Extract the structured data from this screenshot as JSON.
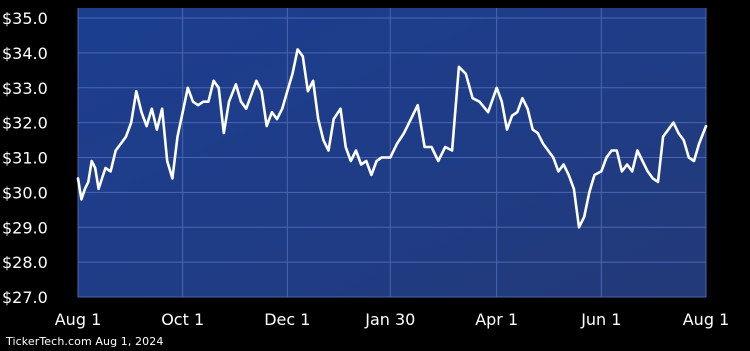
{
  "chart_data": {
    "type": "line",
    "title": "",
    "xlabel": "",
    "ylabel": "",
    "y_tick_labels": [
      "$27.0",
      "$28.0",
      "$29.0",
      "$30.0",
      "$31.0",
      "$32.0",
      "$33.0",
      "$34.0",
      "$35.0"
    ],
    "y_ticks": [
      27,
      28,
      29,
      30,
      31,
      32,
      33,
      34,
      35
    ],
    "ylim": [
      27.0,
      35.0
    ],
    "x_tick_labels": [
      "Aug 1",
      "Oct 1",
      "Dec 1",
      "Jan 30",
      "Apr 1",
      "Jun 1",
      "Aug 1"
    ],
    "x_ticks": [
      "2023-08-01",
      "2023-10-01",
      "2023-12-01",
      "2024-01-30",
      "2024-04-01",
      "2024-06-01",
      "2024-08-01"
    ],
    "xlim": [
      "2023-08-01",
      "2024-08-01"
    ],
    "grid": true,
    "colors": {
      "background": "#1e3c86",
      "grid": "#4a66b0",
      "line": "#ffffff",
      "text": "#ffffff"
    },
    "series": [
      {
        "name": "",
        "x": [
          "2023-08-01",
          "2023-08-03",
          "2023-08-05",
          "2023-08-07",
          "2023-08-09",
          "2023-08-11",
          "2023-08-13",
          "2023-08-15",
          "2023-08-17",
          "2023-08-20",
          "2023-08-23",
          "2023-08-26",
          "2023-08-29",
          "2023-09-01",
          "2023-09-04",
          "2023-09-07",
          "2023-09-10",
          "2023-09-13",
          "2023-09-16",
          "2023-09-19",
          "2023-09-22",
          "2023-09-25",
          "2023-09-28",
          "2023-10-01",
          "2023-10-04",
          "2023-10-07",
          "2023-10-10",
          "2023-10-13",
          "2023-10-16",
          "2023-10-19",
          "2023-10-22",
          "2023-10-25",
          "2023-10-28",
          "2023-11-01",
          "2023-11-04",
          "2023-11-07",
          "2023-11-10",
          "2023-11-13",
          "2023-11-16",
          "2023-11-19",
          "2023-11-22",
          "2023-11-25",
          "2023-11-28",
          "2023-12-01",
          "2023-12-04",
          "2023-12-07",
          "2023-12-10",
          "2023-12-13",
          "2023-12-16",
          "2023-12-19",
          "2023-12-22",
          "2023-12-25",
          "2023-12-28",
          "2024-01-01",
          "2024-01-04",
          "2024-01-07",
          "2024-01-10",
          "2024-01-13",
          "2024-01-16",
          "2024-01-19",
          "2024-01-22",
          "2024-01-25",
          "2024-01-30",
          "2024-02-03",
          "2024-02-07",
          "2024-02-11",
          "2024-02-15",
          "2024-02-19",
          "2024-02-23",
          "2024-02-27",
          "2024-03-02",
          "2024-03-06",
          "2024-03-10",
          "2024-03-14",
          "2024-03-18",
          "2024-03-22",
          "2024-03-27",
          "2024-04-01",
          "2024-04-04",
          "2024-04-07",
          "2024-04-10",
          "2024-04-13",
          "2024-04-16",
          "2024-04-19",
          "2024-04-22",
          "2024-04-25",
          "2024-04-28",
          "2024-05-01",
          "2024-05-04",
          "2024-05-07",
          "2024-05-10",
          "2024-05-13",
          "2024-05-16",
          "2024-05-19",
          "2024-05-22",
          "2024-05-25",
          "2024-05-28",
          "2024-06-01",
          "2024-06-04",
          "2024-06-07",
          "2024-06-10",
          "2024-06-13",
          "2024-06-16",
          "2024-06-19",
          "2024-06-22",
          "2024-06-25",
          "2024-06-28",
          "2024-07-01",
          "2024-07-04",
          "2024-07-07",
          "2024-07-10",
          "2024-07-13",
          "2024-07-16",
          "2024-07-19",
          "2024-07-22",
          "2024-07-25",
          "2024-07-28",
          "2024-08-01"
        ],
        "values": [
          30.4,
          29.8,
          30.1,
          30.3,
          30.9,
          30.7,
          30.1,
          30.4,
          30.7,
          30.6,
          31.2,
          31.4,
          31.6,
          32.0,
          32.9,
          32.3,
          31.9,
          32.4,
          31.8,
          32.4,
          30.9,
          30.4,
          31.6,
          32.3,
          33.0,
          32.6,
          32.5,
          32.6,
          32.6,
          33.2,
          33.0,
          31.7,
          32.6,
          33.1,
          32.6,
          32.4,
          32.8,
          33.2,
          32.9,
          31.9,
          32.3,
          32.1,
          32.4,
          32.9,
          33.4,
          34.1,
          33.9,
          32.9,
          33.2,
          32.1,
          31.5,
          31.2,
          32.1,
          32.4,
          31.3,
          30.9,
          31.2,
          30.8,
          30.9,
          30.5,
          30.9,
          31.0,
          31.0,
          31.4,
          31.7,
          32.1,
          32.5,
          31.3,
          31.3,
          30.9,
          31.3,
          31.2,
          33.6,
          33.4,
          32.7,
          32.6,
          32.3,
          33.0,
          32.6,
          31.8,
          32.2,
          32.3,
          32.7,
          32.4,
          31.8,
          31.7,
          31.4,
          31.2,
          31.0,
          30.6,
          30.8,
          30.5,
          30.1,
          29.0,
          29.3,
          30.0,
          30.5,
          30.6,
          31.0,
          31.2,
          31.2,
          30.6,
          30.8,
          30.6,
          31.2,
          30.9,
          30.6,
          30.4,
          30.3,
          31.6,
          31.8,
          32.0,
          31.7,
          31.5,
          31.0,
          30.9,
          31.4,
          31.9
        ]
      }
    ]
  },
  "footer": {
    "source": "TickerTech.com  Aug 1, 2024"
  }
}
